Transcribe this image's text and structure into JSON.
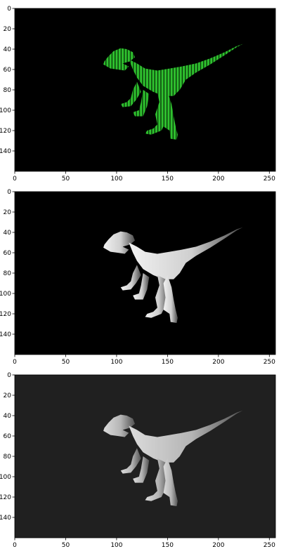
{
  "chart_data": [
    {
      "type": "image",
      "colormap": "green-on-black",
      "background": "#000000",
      "xlim": [
        0,
        256
      ],
      "ylim": [
        160,
        0
      ],
      "x_ticks": [
        0,
        50,
        100,
        150,
        200,
        250
      ],
      "x_tick_labels": [
        "0",
        "50",
        "100",
        "150",
        "200",
        "250"
      ],
      "y_ticks": [
        0,
        20,
        40,
        60,
        80,
        100,
        120,
        140
      ],
      "y_tick_labels": [
        "0",
        "20",
        "40",
        "60",
        "80",
        "100",
        "120",
        "140"
      ],
      "title": "",
      "xlabel": "",
      "ylabel": ""
    },
    {
      "type": "image",
      "colormap": "gray",
      "background": "#000000",
      "xlim": [
        0,
        256
      ],
      "ylim": [
        160,
        0
      ],
      "x_ticks": [
        0,
        50,
        100,
        150,
        200,
        250
      ],
      "x_tick_labels": [
        "0",
        "50",
        "100",
        "150",
        "200",
        "250"
      ],
      "y_ticks": [
        0,
        20,
        40,
        60,
        80,
        100,
        120,
        140
      ],
      "y_tick_labels": [
        "0",
        "20",
        "40",
        "60",
        "80",
        "100",
        "120",
        "140"
      ],
      "title": "",
      "xlabel": "",
      "ylabel": ""
    },
    {
      "type": "image",
      "colormap": "gray",
      "background": "#202020",
      "xlim": [
        0,
        256
      ],
      "ylim": [
        160,
        0
      ],
      "x_ticks": [
        0,
        50,
        100,
        150,
        200,
        250
      ],
      "x_tick_labels": [
        "0",
        "50",
        "100",
        "150",
        "200",
        "250"
      ],
      "y_ticks": [
        0,
        20,
        40,
        60,
        80,
        100,
        120,
        140
      ],
      "y_tick_labels": [
        "0",
        "20",
        "40",
        "60",
        "80",
        "100",
        "120",
        "140"
      ],
      "title": "",
      "xlabel": "",
      "ylabel": ""
    }
  ]
}
